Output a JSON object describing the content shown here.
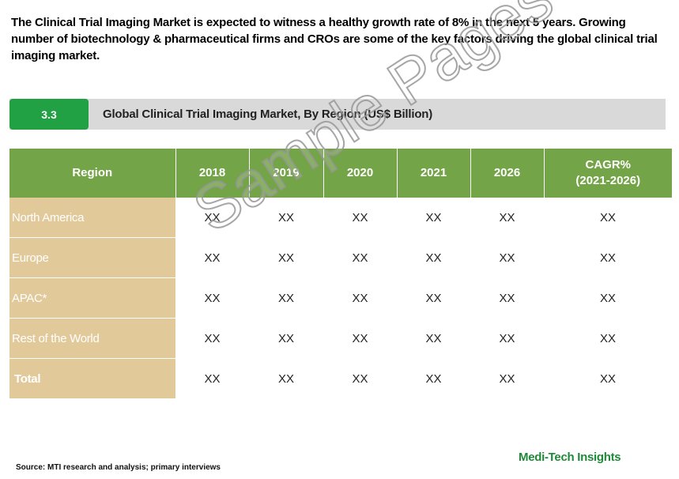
{
  "intro": "The Clinical Trial Imaging Market is expected to witness a healthy growth rate of 8% in the next 5 years. Growing number of biotechnology & pharmaceutical firms and CROs are some of the key factors driving the global clinical trial imaging market.",
  "section": {
    "number": "3.3",
    "title": "Global Clinical Trial Imaging Market, By Region (US$ Billion)"
  },
  "table": {
    "headers": [
      "Region",
      "2018",
      "2019",
      "2020",
      "2021",
      "2026",
      "CAGR%",
      "(2021-2026)"
    ],
    "rows": [
      {
        "region": "North America",
        "values": [
          "XX",
          "XX",
          "XX",
          "XX",
          "XX",
          "XX"
        ]
      },
      {
        "region": "Europe",
        "values": [
          "XX",
          "XX",
          "XX",
          "XX",
          "XX",
          "XX"
        ]
      },
      {
        "region": "APAC*",
        "values": [
          "XX",
          "XX",
          "XX",
          "XX",
          "XX",
          "XX"
        ]
      },
      {
        "region": "Rest of the World",
        "values": [
          "XX",
          "XX",
          "XX",
          "XX",
          "XX",
          "XX"
        ]
      },
      {
        "region": "Total",
        "values": [
          "XX",
          "XX",
          "XX",
          "XX",
          "XX",
          "XX"
        ]
      }
    ]
  },
  "watermark": "Sample Pages",
  "source": "Source: MTI research and analysis; primary interviews",
  "logo": "Medi-Tech Insights",
  "colors": {
    "badge_green": "#21a144",
    "header_green": "#74a448",
    "region_tan": "#e2c999",
    "header_bar_gray": "#d9d9d9",
    "logo_green": "#1e8a39"
  }
}
